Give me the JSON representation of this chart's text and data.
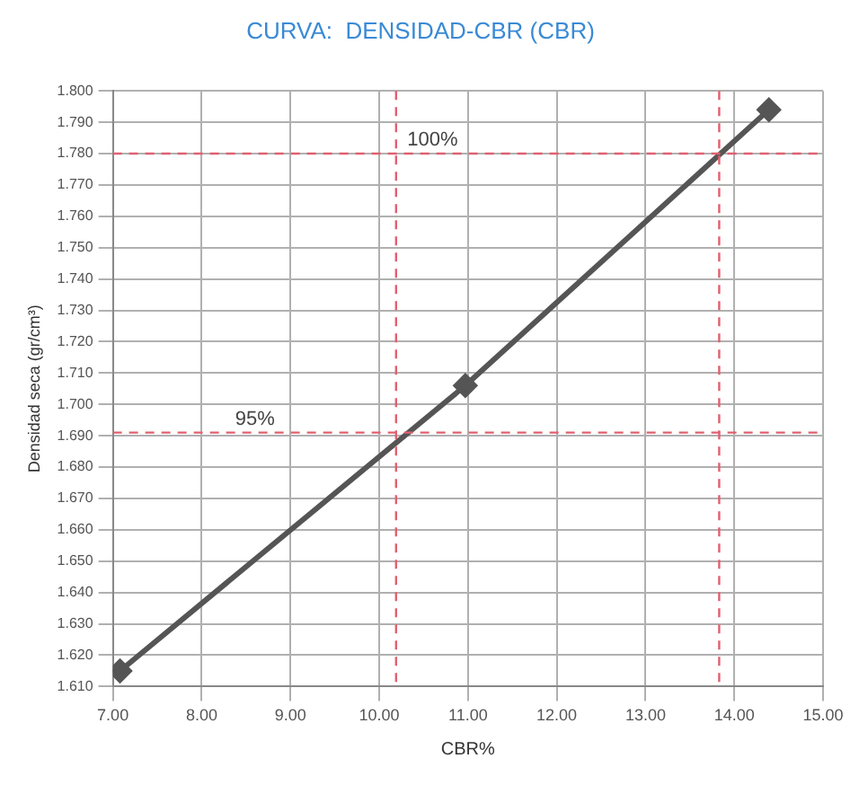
{
  "chart_data": {
    "type": "line",
    "title": "CURVA:  DENSIDAD-CBR (CBR)",
    "xlabel": "CBR%",
    "ylabel": "Densidad seca (gr/cm³)",
    "x": [
      7.08,
      10.97,
      14.39
    ],
    "series": [
      {
        "color": "#555555",
        "values": [
          1.615,
          1.706,
          1.794
        ]
      }
    ],
    "marker": "diamond",
    "line_style": "solid",
    "grid": true,
    "legend": false,
    "xlim": [
      7,
      15
    ],
    "xticks": [
      {
        "value": 7,
        "label": "7.00"
      },
      {
        "value": 8,
        "label": "8.00"
      },
      {
        "value": 9,
        "label": "9.00"
      },
      {
        "value": 10,
        "label": "10.00"
      },
      {
        "value": 11,
        "label": "11.00"
      },
      {
        "value": 12,
        "label": "12.00"
      },
      {
        "value": 13,
        "label": "13.00"
      },
      {
        "value": 14,
        "label": "14.00"
      },
      {
        "value": 15,
        "label": "15.00"
      }
    ],
    "ylim": [
      1.61,
      1.8
    ],
    "yticks": [
      {
        "value": 1.61,
        "label": "1.610"
      },
      {
        "value": 1.62,
        "label": "1.620"
      },
      {
        "value": 1.63,
        "label": "1.630"
      },
      {
        "value": 1.64,
        "label": "1.640"
      },
      {
        "value": 1.65,
        "label": "1.650"
      },
      {
        "value": 1.66,
        "label": "1.660"
      },
      {
        "value": 1.67,
        "label": "1.670"
      },
      {
        "value": 1.68,
        "label": "1.680"
      },
      {
        "value": 1.69,
        "label": "1.690"
      },
      {
        "value": 1.7,
        "label": "1.700"
      },
      {
        "value": 1.71,
        "label": "1.710"
      },
      {
        "value": 1.72,
        "label": "1.720"
      },
      {
        "value": 1.73,
        "label": "1.730"
      },
      {
        "value": 1.74,
        "label": "1.740"
      },
      {
        "value": 1.75,
        "label": "1.750"
      },
      {
        "value": 1.76,
        "label": "1.760"
      },
      {
        "value": 1.77,
        "label": "1.770"
      },
      {
        "value": 1.78,
        "label": "1.780"
      },
      {
        "value": 1.79,
        "label": "1.790"
      },
      {
        "value": 1.8,
        "label": "1.800"
      }
    ],
    "annotations": [
      {
        "text": "100%",
        "x": 10.6,
        "y": 1.78
      },
      {
        "text": "95%",
        "x": 8.6,
        "y": 1.691
      }
    ],
    "ref_lines": [
      {
        "axis": "y",
        "value": 1.78,
        "color": "#e06070",
        "line_style": "dashed"
      },
      {
        "axis": "y",
        "value": 1.691,
        "color": "#e06070",
        "line_style": "dashed"
      },
      {
        "axis": "x",
        "value": 13.83,
        "color": "#e06070",
        "line_style": "dashed"
      },
      {
        "axis": "x",
        "value": 10.19,
        "color": "#e06070",
        "line_style": "dashed"
      }
    ]
  }
}
